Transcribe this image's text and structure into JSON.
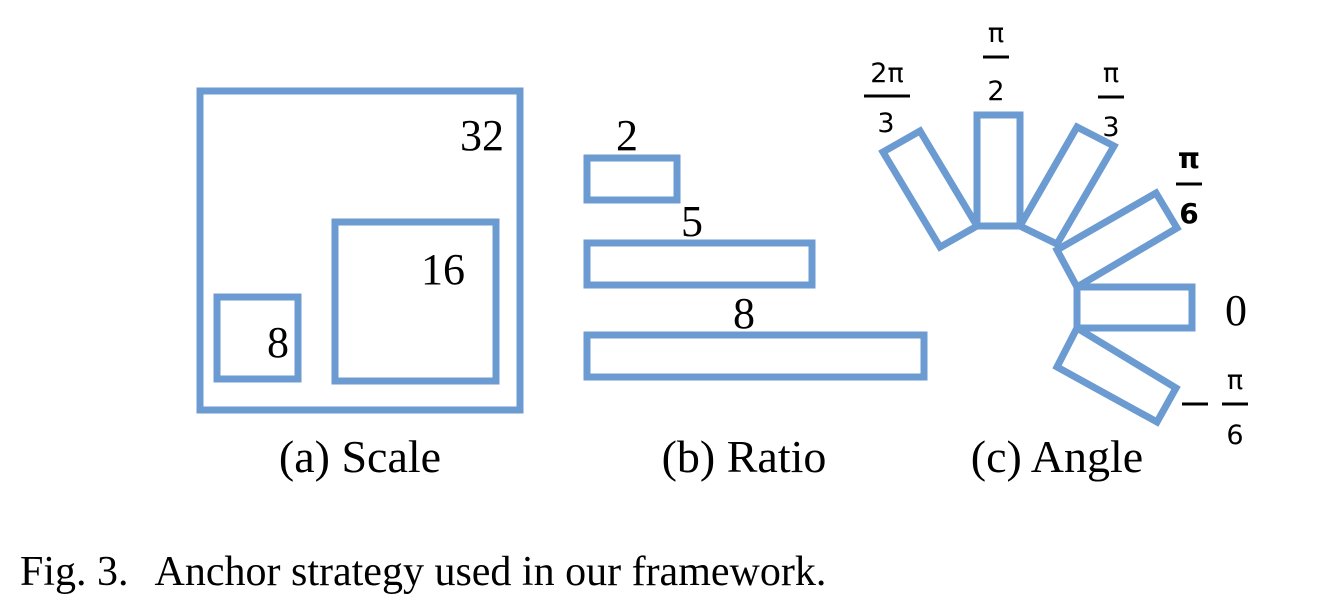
{
  "panels": {
    "scale": {
      "caption": "(a) Scale",
      "labels": [
        "32",
        "16",
        "8"
      ]
    },
    "ratio": {
      "caption": "(b) Ratio",
      "labels": [
        "2",
        "5",
        "8"
      ]
    },
    "angle": {
      "caption": "(c) Angle",
      "labels": {
        "two_pi_over_3": {
          "num": "2π",
          "den": "3"
        },
        "pi_over_2": {
          "num": "π",
          "den": "2"
        },
        "pi_over_3": {
          "num": "π",
          "den": "3"
        },
        "pi_over_6": {
          "num": "π",
          "den": "6"
        },
        "zero": "0",
        "minus_pi_over_6": {
          "sign": "−",
          "num": "π",
          "den": "6"
        }
      }
    }
  },
  "caption": {
    "number": "Fig. 3.",
    "text": "Anchor strategy used in our framework."
  },
  "colors": {
    "box_stroke": "#6b9bd1"
  }
}
